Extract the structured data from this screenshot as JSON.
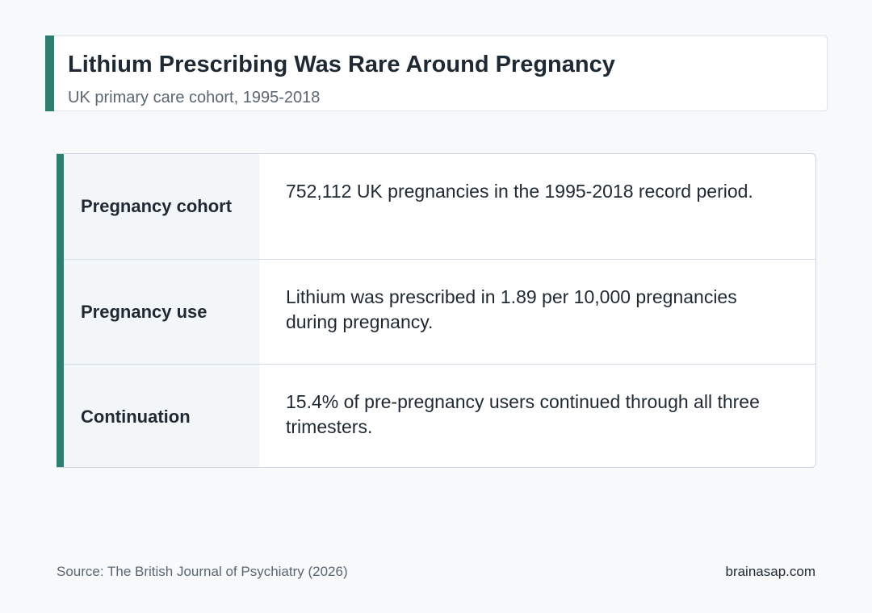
{
  "header": {
    "title": "Lithium Prescribing Was Rare Around Pregnancy",
    "subtitle": "UK primary care cohort, 1995-2018"
  },
  "rows": [
    {
      "label": "Pregnancy cohort",
      "value": "752,112 UK pregnancies in the 1995-2018 record period."
    },
    {
      "label": "Pregnancy use",
      "value": "Lithium was prescribed in 1.89 per 10,000 pregnancies during pregnancy."
    },
    {
      "label": "Continuation",
      "value": "15.4% of pre-pregnancy users continued through all three trimesters."
    }
  ],
  "footer": {
    "source": "Source: The British Journal of Psychiatry (2026)",
    "brand": "brainasap.com"
  },
  "colors": {
    "accent": "#2e7d6e",
    "background": "#f7f9fb",
    "text": "#1f2933"
  }
}
